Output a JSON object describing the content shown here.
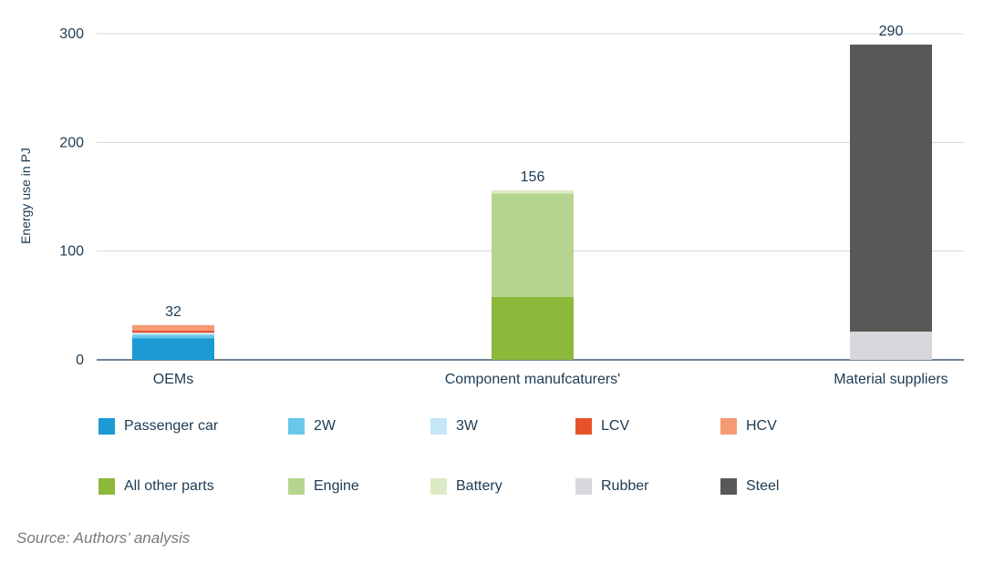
{
  "chart_data": {
    "type": "bar",
    "stacked": true,
    "title": "",
    "xlabel": "",
    "ylabel": "Energy use in PJ",
    "ylim": [
      0,
      300
    ],
    "yticks": [
      0,
      100,
      200,
      300
    ],
    "grid": true,
    "legend_position": "bottom",
    "categories": [
      "OEMs",
      "Component manufcaturers'",
      "Material suppliers"
    ],
    "totals": [
      32,
      156,
      290
    ],
    "series": [
      {
        "name": "Passenger car",
        "color": "#1b9ad6",
        "values": [
          20,
          0,
          0
        ]
      },
      {
        "name": "2W",
        "color": "#69c7ea",
        "values": [
          3,
          0,
          0
        ]
      },
      {
        "name": "3W",
        "color": "#c4e6f5",
        "values": [
          2,
          0,
          0
        ]
      },
      {
        "name": "LCV",
        "color": "#e8522a",
        "values": [
          2,
          0,
          0
        ]
      },
      {
        "name": "HCV",
        "color": "#f59a72",
        "values": [
          5,
          0,
          0
        ]
      },
      {
        "name": "All other parts",
        "color": "#8cb83c",
        "values": [
          0,
          58,
          0
        ]
      },
      {
        "name": "Engine",
        "color": "#b5d58e",
        "values": [
          0,
          95,
          0
        ]
      },
      {
        "name": "Battery",
        "color": "#dcebc4",
        "values": [
          0,
          3,
          0
        ]
      },
      {
        "name": "Rubber",
        "color": "#d7d7dc",
        "values": [
          0,
          0,
          26
        ]
      },
      {
        "name": "Steel",
        "color": "#585856",
        "values": [
          0,
          0,
          264
        ]
      }
    ]
  },
  "source": "Source: Authors’ analysis"
}
